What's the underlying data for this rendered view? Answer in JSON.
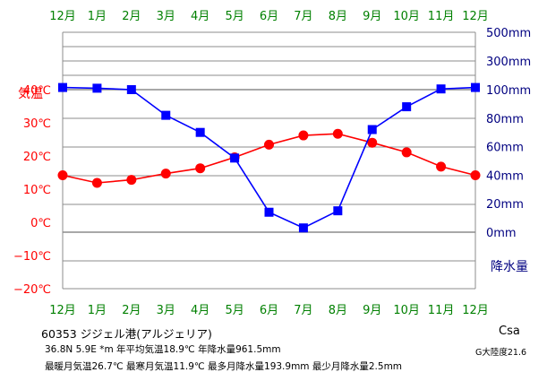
{
  "chart_data": {
    "type": "line",
    "categories": [
      "12月",
      "1月",
      "2月",
      "3月",
      "4月",
      "5月",
      "6月",
      "7月",
      "8月",
      "9月",
      "10月",
      "11月",
      "12月"
    ],
    "series": [
      {
        "name": "気温",
        "axis": "left",
        "color": "#ff0000",
        "marker": "circle",
        "values": [
          14.2,
          11.9,
          12.8,
          14.7,
          16.3,
          19.6,
          23.4,
          26.2,
          26.7,
          24.0,
          21.1,
          16.8,
          14.2
        ]
      },
      {
        "name": "降水量",
        "axis": "right",
        "color": "#0000ff",
        "marker": "square",
        "values": [
          115,
          110,
          100,
          82,
          70,
          52,
          14,
          3,
          15,
          72,
          88,
          105,
          115
        ]
      }
    ],
    "left_axis": {
      "label": "気温",
      "ticks": [
        "40℃",
        "30℃",
        "20℃",
        "10℃",
        "0℃",
        "−10℃",
        "−20℃"
      ],
      "tick_values": [
        40,
        30,
        20,
        10,
        0,
        -10,
        -20
      ],
      "range": [
        -20,
        40
      ],
      "color": "#ff0000"
    },
    "right_axis": {
      "label": "降水量",
      "ticks": [
        "500mm",
        "300mm",
        "100mm",
        "80mm",
        "60mm",
        "40mm",
        "20mm",
        "0mm"
      ],
      "tick_values": [
        500,
        300,
        100,
        80,
        60,
        40,
        20,
        0
      ],
      "color": "#000080"
    },
    "grid": true,
    "month_color": "#008000"
  },
  "station": {
    "name": "60353 ジジェル港(アルジェリア)",
    "line1": "36.8N 5.9E *m 年平均気温18.9℃ 年降水量961.5mm",
    "line2": "最暖月気温26.7℃ 最寒月気温11.9℃ 最多月降水量193.9mm 最少月降水量2.5mm",
    "climate": "Csa",
    "continent": "G大陸度21.6"
  }
}
